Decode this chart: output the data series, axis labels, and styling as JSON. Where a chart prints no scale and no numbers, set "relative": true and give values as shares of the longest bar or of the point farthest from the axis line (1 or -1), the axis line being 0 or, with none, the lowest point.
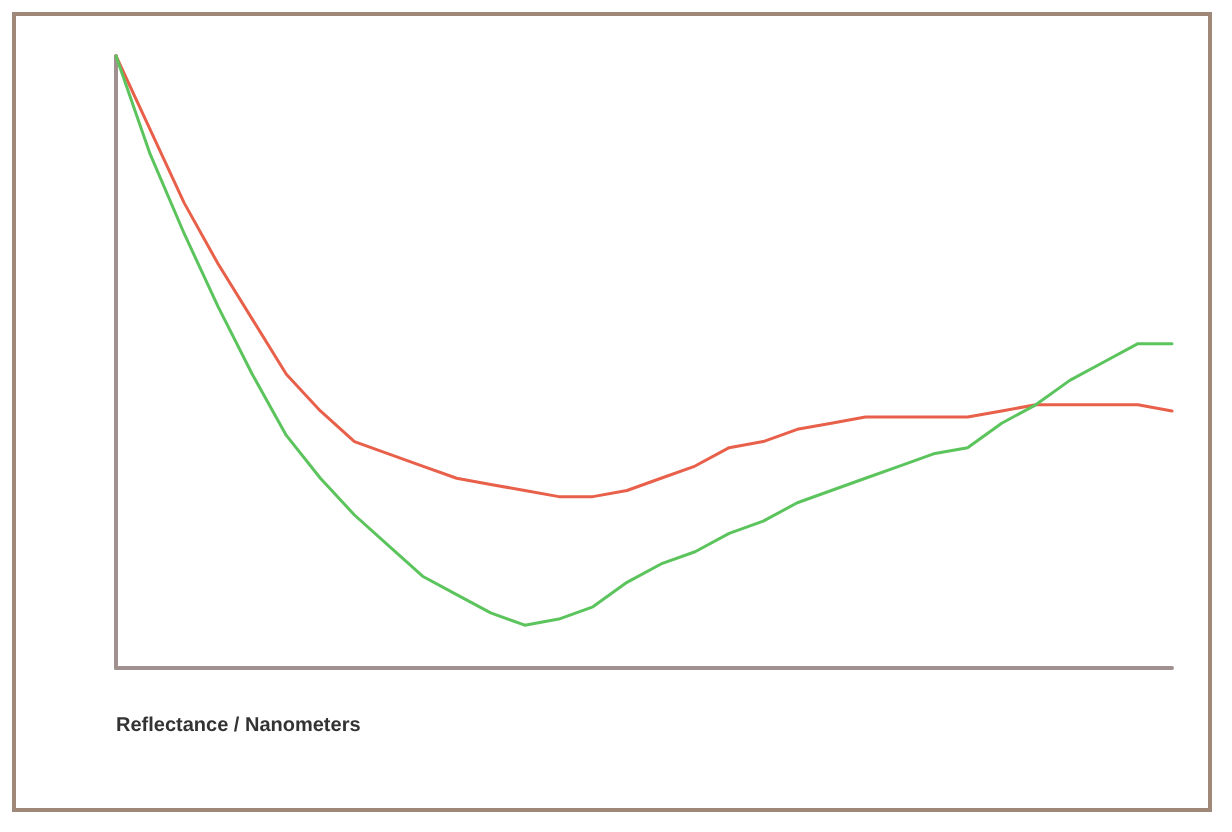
{
  "chart_data": {
    "type": "line",
    "relative": true,
    "xlabel": "Reflectance / Nanometers",
    "marker": "none",
    "line_style": "solid",
    "grid": false,
    "categories": [
      null,
      null,
      null,
      null,
      null,
      null,
      null,
      null,
      null,
      null,
      null,
      null,
      null,
      null,
      null,
      null,
      null,
      null,
      null,
      null,
      null,
      null,
      null,
      null,
      null,
      null,
      null,
      null,
      null,
      null,
      null,
      null
    ],
    "series": [
      {
        "color": "#e8604a",
        "values": [
          1.0,
          0.88,
          0.76,
          0.66,
          0.57,
          0.48,
          0.42,
          0.37,
          0.35,
          0.33,
          0.31,
          0.3,
          0.29,
          0.28,
          0.28,
          0.29,
          0.31,
          0.33,
          0.36,
          0.37,
          0.39,
          0.4,
          0.41,
          0.41,
          0.41,
          0.41,
          0.42,
          0.43,
          0.43,
          0.43,
          0.43,
          0.42
        ]
      },
      {
        "color": "#5cc45c",
        "values": [
          1.0,
          0.84,
          0.71,
          0.59,
          0.48,
          0.38,
          0.31,
          0.25,
          0.2,
          0.15,
          0.12,
          0.09,
          0.07,
          0.08,
          0.1,
          0.14,
          0.17,
          0.19,
          0.22,
          0.24,
          0.27,
          0.29,
          0.31,
          0.33,
          0.35,
          0.36,
          0.4,
          0.43,
          0.47,
          0.5,
          0.53,
          0.53
        ]
      }
    ]
  }
}
